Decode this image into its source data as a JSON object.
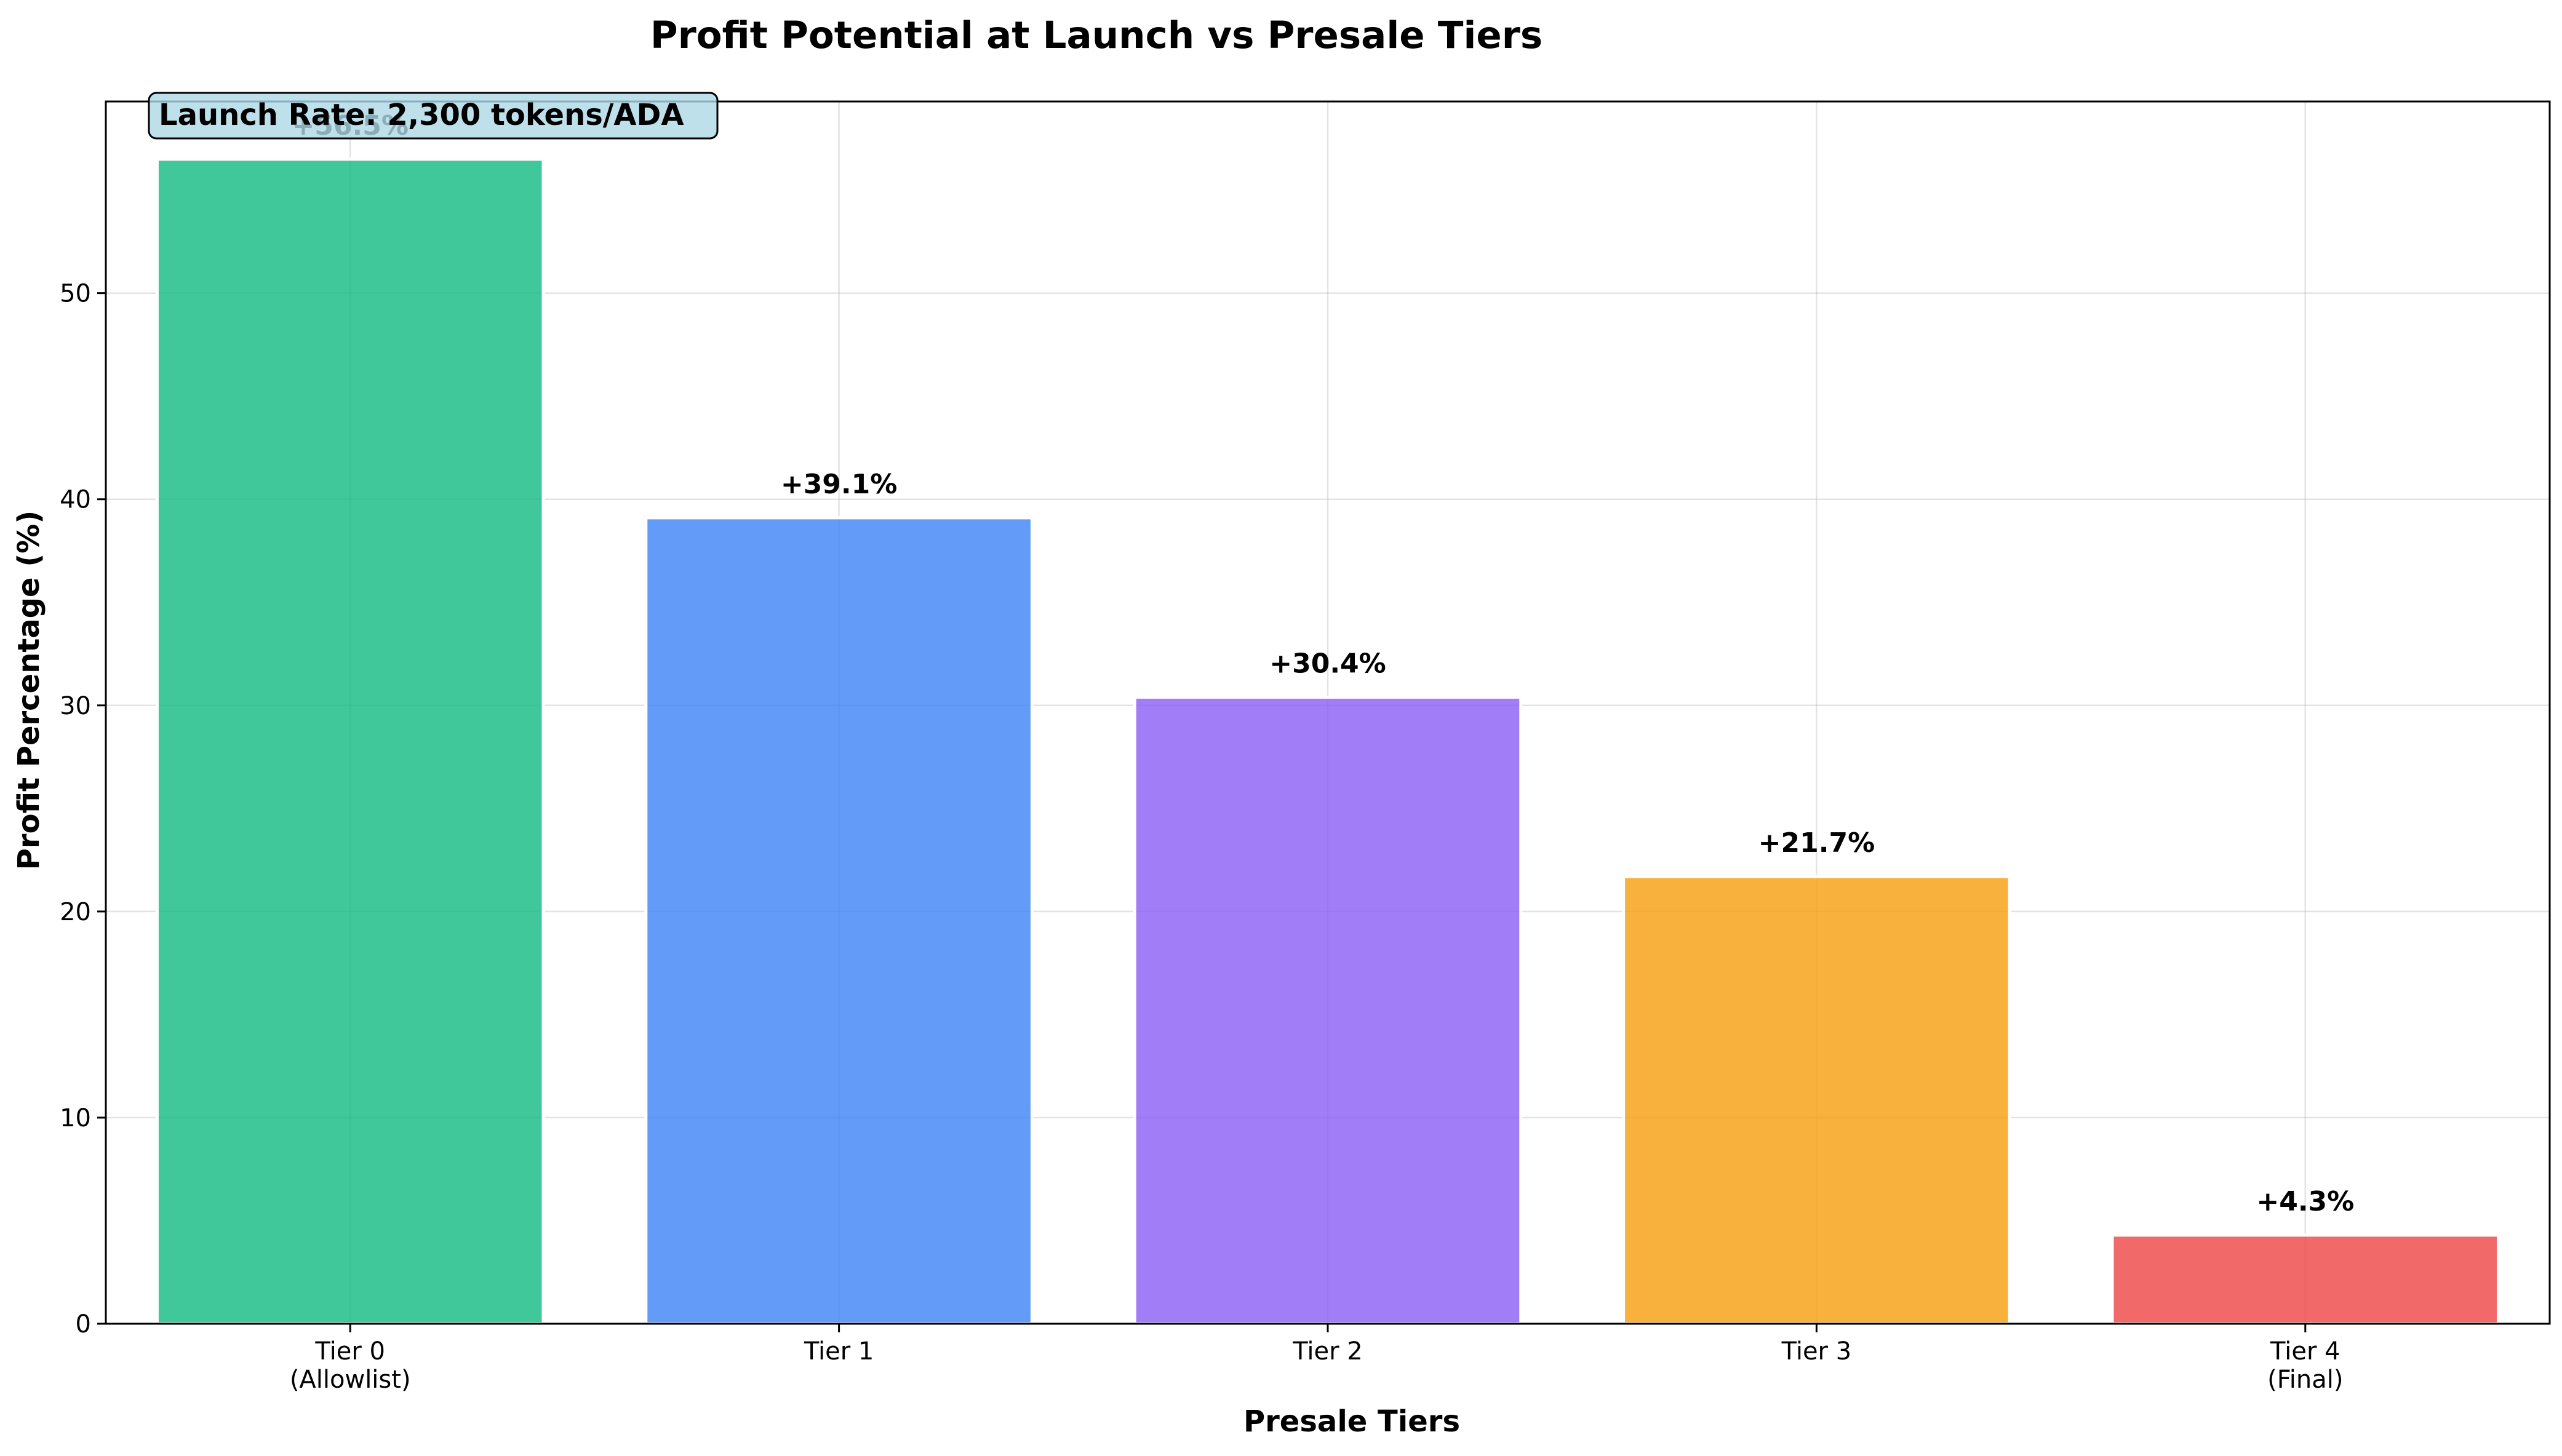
{
  "chart_data": {
    "type": "bar",
    "title": "Profit Potential at Launch vs Presale Tiers",
    "xlabel": "Presale Tiers",
    "ylabel": "Profit Percentage (%)",
    "categories": [
      [
        "Tier 0",
        "(Allowlist)"
      ],
      [
        "Tier 1"
      ],
      [
        "Tier 2"
      ],
      [
        "Tier 3"
      ],
      [
        "Tier 4",
        "(Final)"
      ]
    ],
    "values": [
      56.5,
      39.1,
      30.4,
      21.7,
      4.3
    ],
    "value_labels": [
      "+56.5%",
      "+39.1%",
      "+30.4%",
      "+21.7%",
      "+4.3%"
    ],
    "colors": [
      "#10b981",
      "#3b82f6",
      "#8b5cf6",
      "#f59e0b",
      "#ef4444"
    ],
    "ylim": [
      0,
      59.3
    ],
    "yticks": [
      0,
      10,
      20,
      30,
      40,
      50
    ],
    "grid": true,
    "annotation": "Launch Rate: 2,300 tokens/ADA",
    "annotation_bg": "#add8e6"
  }
}
